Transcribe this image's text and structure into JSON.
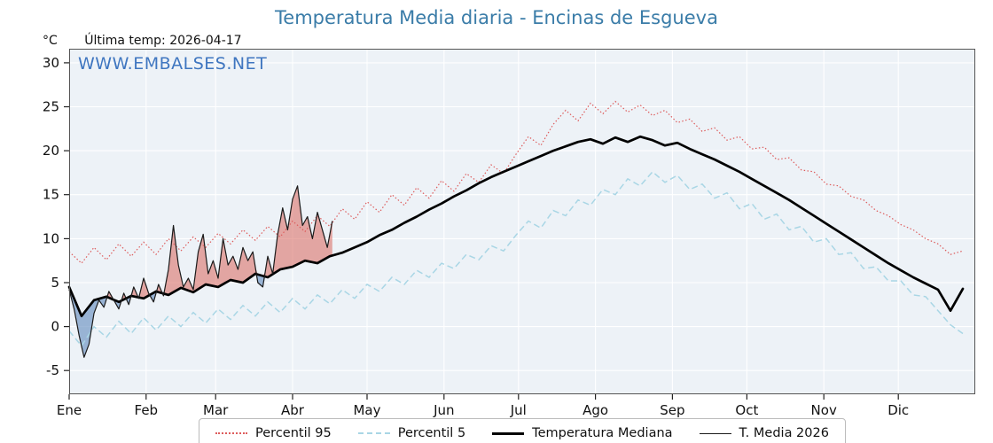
{
  "header": {
    "y_unit": "°C",
    "last_temp": "Última temp: 2026-04-17"
  },
  "watermark": "WWW.EMBALSES.NET",
  "colors": {
    "title": "#3a7ca8",
    "watermark": "#3f76c0",
    "plot_bg": "#edf2f7",
    "grid": "#ffffff",
    "p95": "#dd5c5c",
    "p5": "#a9d6e5",
    "median": "#000000",
    "t2026": "#1a1a1a",
    "fill_above": "rgba(217,102,92,0.55)",
    "fill_below": "rgba(106,145,194,0.65)"
  },
  "legend": {
    "items": [
      "Percentil 95",
      "Percentil 5",
      "Temperatura Mediana",
      "T. Media 2026"
    ]
  },
  "chart_data": {
    "type": "line",
    "title": "Temperatura Media diaria - Encinas de Esgueva",
    "subtitle": "Última temp: 2026-04-17",
    "x_axis": {
      "unit": "day_of_year",
      "range": [
        0,
        365
      ],
      "months": [
        "Ene",
        "Feb",
        "Mar",
        "Abr",
        "May",
        "Jun",
        "Jul",
        "Ago",
        "Sep",
        "Oct",
        "Nov",
        "Dic"
      ],
      "month_start_days": [
        0,
        31,
        59,
        90,
        120,
        151,
        181,
        212,
        243,
        273,
        304,
        334
      ]
    },
    "y_axis": {
      "unit": "°C",
      "ticks": [
        -5,
        0,
        5,
        10,
        15,
        20,
        25,
        30
      ],
      "range": [
        -7.7,
        31.6
      ]
    },
    "grid": true,
    "legend_position": "bottom",
    "series": [
      {
        "name": "Percentil 95",
        "style": "dotted",
        "x_step": 5,
        "values": [
          8.5,
          7.2,
          9.0,
          7.6,
          9.4,
          8.0,
          9.6,
          8.2,
          10.0,
          8.6,
          10.2,
          9.0,
          10.6,
          9.4,
          11.0,
          9.8,
          11.4,
          10.2,
          12.0,
          10.8,
          12.6,
          11.4,
          13.4,
          12.2,
          14.2,
          13.0,
          15.0,
          13.8,
          15.8,
          14.6,
          16.6,
          15.4,
          17.4,
          16.4,
          18.4,
          17.4,
          19.6,
          21.6,
          20.6,
          23.0,
          24.6,
          23.4,
          25.4,
          24.2,
          25.6,
          24.4,
          25.2,
          24.0,
          24.6,
          23.2,
          23.6,
          22.2,
          22.6,
          21.2,
          21.6,
          20.2,
          20.4,
          19.0,
          19.2,
          17.8,
          17.6,
          16.2,
          16.0,
          14.8,
          14.4,
          13.2,
          12.6,
          11.6,
          11.0,
          10.0,
          9.4,
          8.2,
          8.6
        ]
      },
      {
        "name": "Percentil 5",
        "style": "dashed",
        "x_step": 5,
        "values": [
          -0.5,
          -2.2,
          0.0,
          -1.2,
          0.6,
          -0.8,
          1.0,
          -0.4,
          1.2,
          0.0,
          1.6,
          0.4,
          2.0,
          0.8,
          2.4,
          1.2,
          2.8,
          1.6,
          3.2,
          2.0,
          3.6,
          2.6,
          4.2,
          3.2,
          4.8,
          4.0,
          5.6,
          4.8,
          6.4,
          5.6,
          7.2,
          6.6,
          8.2,
          7.6,
          9.2,
          8.6,
          10.4,
          12.0,
          11.2,
          13.2,
          12.6,
          14.4,
          13.8,
          15.6,
          15.0,
          16.8,
          16.0,
          17.6,
          16.4,
          17.2,
          15.6,
          16.2,
          14.6,
          15.2,
          13.4,
          14.0,
          12.2,
          12.8,
          11.0,
          11.4,
          9.6,
          10.0,
          8.2,
          8.4,
          6.6,
          6.8,
          5.2,
          5.2,
          3.6,
          3.4,
          1.8,
          0.2,
          -0.8
        ]
      },
      {
        "name": "Temperatura Mediana",
        "style": "solid_thick",
        "x_step": 5,
        "values": [
          4.5,
          1.2,
          3.0,
          3.4,
          2.8,
          3.5,
          3.2,
          4.0,
          3.6,
          4.4,
          3.9,
          4.8,
          4.5,
          5.3,
          5.0,
          6.0,
          5.6,
          6.5,
          6.8,
          7.5,
          7.2,
          8.0,
          8.4,
          9.0,
          9.6,
          10.4,
          11.0,
          11.8,
          12.5,
          13.3,
          14.0,
          14.8,
          15.5,
          16.3,
          17.0,
          17.6,
          18.2,
          18.8,
          19.4,
          20.0,
          20.5,
          21.0,
          21.3,
          20.8,
          21.5,
          21.0,
          21.6,
          21.2,
          20.6,
          20.9,
          20.2,
          19.6,
          19.0,
          18.3,
          17.6,
          16.8,
          16.0,
          15.2,
          14.4,
          13.5,
          12.6,
          11.7,
          10.8,
          9.9,
          9.0,
          8.1,
          7.2,
          6.4,
          5.6,
          4.9,
          4.2,
          1.8,
          4.3
        ]
      },
      {
        "name": "T. Media 2026",
        "style": "solid_thin",
        "x_step": 2,
        "values": [
          4.2,
          2.0,
          -1.0,
          -3.5,
          -2.0,
          1.5,
          3.0,
          2.2,
          4.0,
          3.0,
          2.0,
          3.8,
          2.5,
          4.5,
          3.2,
          5.5,
          3.8,
          2.8,
          4.8,
          3.5,
          6.5,
          11.5,
          7.0,
          4.5,
          5.5,
          4.2,
          8.5,
          10.5,
          6.0,
          7.5,
          5.5,
          10.0,
          7.0,
          8.0,
          6.5,
          9.0,
          7.5,
          8.5,
          5.0,
          4.5,
          8.0,
          6.0,
          10.5,
          13.5,
          11.0,
          14.5,
          16.0,
          11.5,
          12.5,
          10.0,
          13.0,
          11.0,
          9.0,
          12.0
        ]
      }
    ],
    "fills": {
      "description": "area between T. Media 2026 and Temperatura Mediana",
      "above_median_color": "rgba(217,102,92,0.55)",
      "below_median_color": "rgba(106,145,194,0.65)"
    }
  }
}
